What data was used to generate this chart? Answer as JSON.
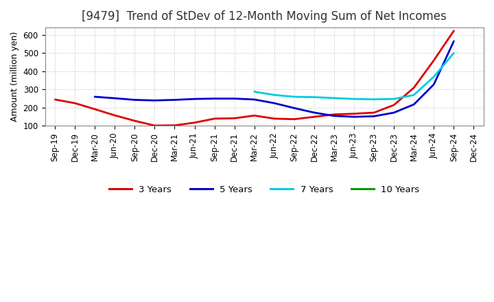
{
  "title": "[9479]  Trend of StDev of 12-Month Moving Sum of Net Incomes",
  "ylabel": "Amount (million yen)",
  "ylim": [
    100,
    640
  ],
  "yticks": [
    100,
    200,
    300,
    400,
    500,
    600
  ],
  "background_color": "#ffffff",
  "plot_background": "#ffffff",
  "grid_color": "#bbbbbb",
  "x_labels": [
    "Sep-19",
    "Dec-19",
    "Mar-20",
    "Jun-20",
    "Sep-20",
    "Dec-20",
    "Mar-21",
    "Jun-21",
    "Sep-21",
    "Dec-21",
    "Mar-22",
    "Jun-22",
    "Sep-22",
    "Dec-22",
    "Mar-23",
    "Jun-23",
    "Sep-23",
    "Dec-23",
    "Mar-24",
    "Jun-24",
    "Sep-24",
    "Dec-24"
  ],
  "series": {
    "3 Years": {
      "color": "#dd0000",
      "data_x": [
        0,
        1,
        2,
        3,
        4,
        5,
        6,
        7,
        8,
        9,
        10,
        11,
        12,
        13,
        14,
        15,
        16,
        17,
        18,
        19,
        20
      ],
      "data_y": [
        245,
        225,
        192,
        158,
        128,
        102,
        103,
        118,
        140,
        142,
        157,
        140,
        137,
        150,
        163,
        167,
        173,
        215,
        310,
        460,
        622
      ]
    },
    "5 Years": {
      "color": "#0000cc",
      "data_x": [
        2,
        3,
        4,
        5,
        6,
        7,
        8,
        9,
        10,
        11,
        12,
        13,
        14,
        15,
        16,
        17,
        18,
        19,
        20
      ],
      "data_y": [
        260,
        252,
        243,
        240,
        243,
        248,
        250,
        250,
        245,
        225,
        198,
        173,
        155,
        150,
        153,
        173,
        218,
        328,
        565
      ]
    },
    "7 Years": {
      "color": "#00ccdd",
      "data_x": [
        10,
        11,
        12,
        13,
        14,
        15,
        16,
        17,
        18,
        19,
        20
      ],
      "data_y": [
        288,
        270,
        260,
        258,
        253,
        248,
        246,
        248,
        270,
        370,
        500
      ]
    },
    "10 Years": {
      "color": "#009900",
      "data_x": [],
      "data_y": []
    }
  },
  "legend_entries": [
    "3 Years",
    "5 Years",
    "7 Years",
    "10 Years"
  ],
  "legend_colors": [
    "#dd0000",
    "#0000cc",
    "#00ccdd",
    "#009900"
  ],
  "title_fontsize": 12,
  "axis_fontsize": 9,
  "tick_fontsize": 8.5
}
